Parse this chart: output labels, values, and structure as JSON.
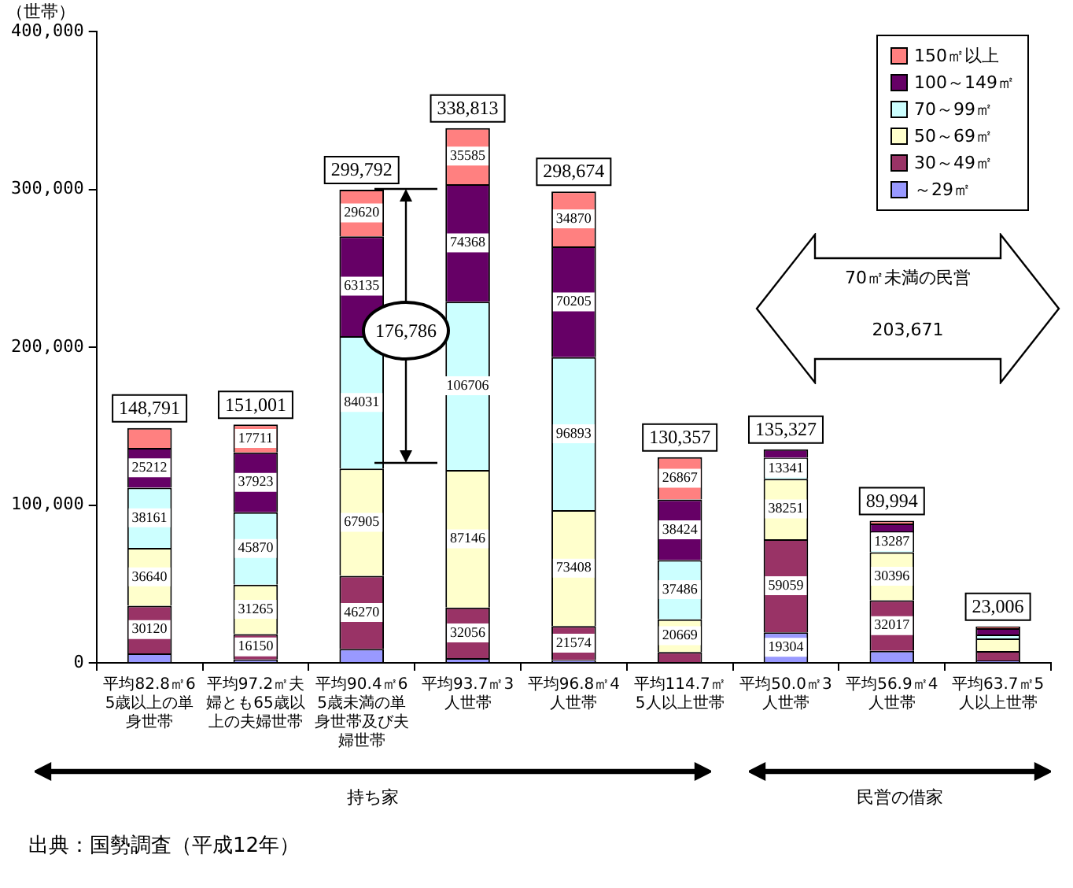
{
  "chart_data": {
    "type": "bar",
    "stacked": true,
    "ylabel": "（世帯）",
    "categories": [
      "平均82.8㎡65歳以上の単身世帯",
      "平均97.2㎡夫婦とも65歳以上の夫婦世帯",
      "平均90.4㎡65歳未満の単身世帯及び夫婦世帯",
      "平均93.7㎡3人世帯",
      "平均96.8㎡4人世帯",
      "平均114.7㎡5人以上世帯",
      "平均50.0㎡3人世帯",
      "平均56.9㎡4人世帯",
      "平均63.7㎡5人以上世帯"
    ],
    "series": [
      {
        "name": "～29㎡",
        "color": "#9999ff",
        "values": [
          6000,
          2082,
          8831,
          2952,
          1724,
          null,
          19304,
          7600,
          1500
        ],
        "value_labels": [
          null,
          null,
          null,
          null,
          null,
          null,
          "19304",
          null,
          null
        ]
      },
      {
        "name": "30～49㎡",
        "color": "#993366",
        "values": [
          30120,
          16150,
          46270,
          32056,
          21574,
          6911,
          59059,
          32017,
          6000
        ],
        "value_labels": [
          "30120",
          "16150",
          "46270",
          "32056",
          "21574",
          null,
          "59059",
          "32017",
          null
        ]
      },
      {
        "name": "50～69㎡",
        "color": "#ffffcc",
        "values": [
          36640,
          31265,
          67905,
          87146,
          73408,
          20669,
          38251,
          30396,
          8000
        ],
        "value_labels": [
          "36640",
          "31265",
          "67905",
          "87146",
          "73408",
          "20669",
          "38251",
          "30396",
          null
        ]
      },
      {
        "name": "70～99㎡",
        "color": "#ccffff",
        "values": [
          38161,
          45870,
          84031,
          106706,
          96893,
          37486,
          13341,
          13287,
          2500
        ],
        "value_labels": [
          "38161",
          "45870",
          "84031",
          "106706",
          "96893",
          "37486",
          "13341",
          "13287",
          null
        ]
      },
      {
        "name": "100～149㎡",
        "color": "#660066",
        "values": [
          25212,
          37923,
          63135,
          74368,
          70205,
          38424,
          5372,
          4994,
          4006
        ],
        "value_labels": [
          "25212",
          "37923",
          "63135",
          "74368",
          "70205",
          "38424",
          null,
          null,
          null
        ]
      },
      {
        "name": "150㎡以上",
        "color": "#ff8080",
        "values": [
          12658,
          17711,
          29620,
          35585,
          34870,
          26867,
          null,
          1700,
          1000
        ],
        "value_labels": [
          null,
          "17711",
          "29620",
          "35585",
          "34870",
          "26867",
          null,
          null,
          null
        ]
      }
    ],
    "totals": [
      "148,791",
      "151,001",
      "299,792",
      "338,813",
      "298,674",
      "130,357",
      "135,327",
      "89,994",
      "23,006"
    ],
    "ylim": [
      0,
      400000
    ],
    "yticks": [
      {
        "value": 0,
        "label": "0"
      },
      {
        "value": 100000,
        "label": "100,000"
      },
      {
        "value": 200000,
        "label": "200,000"
      },
      {
        "value": 300000,
        "label": "300,000"
      },
      {
        "value": 400000,
        "label": "400,000"
      }
    ],
    "grid": false,
    "legend": "top right",
    "annotations": [
      {
        "text": "176,786",
        "x": "平均90.4㎡65歳未満の単身世帯及び夫婦世帯",
        "y": 210000
      },
      "70㎡未満の民営",
      "203,671",
      "持ち家",
      "民営の借家",
      "出典：国勢調査（平成12年）"
    ]
  }
}
